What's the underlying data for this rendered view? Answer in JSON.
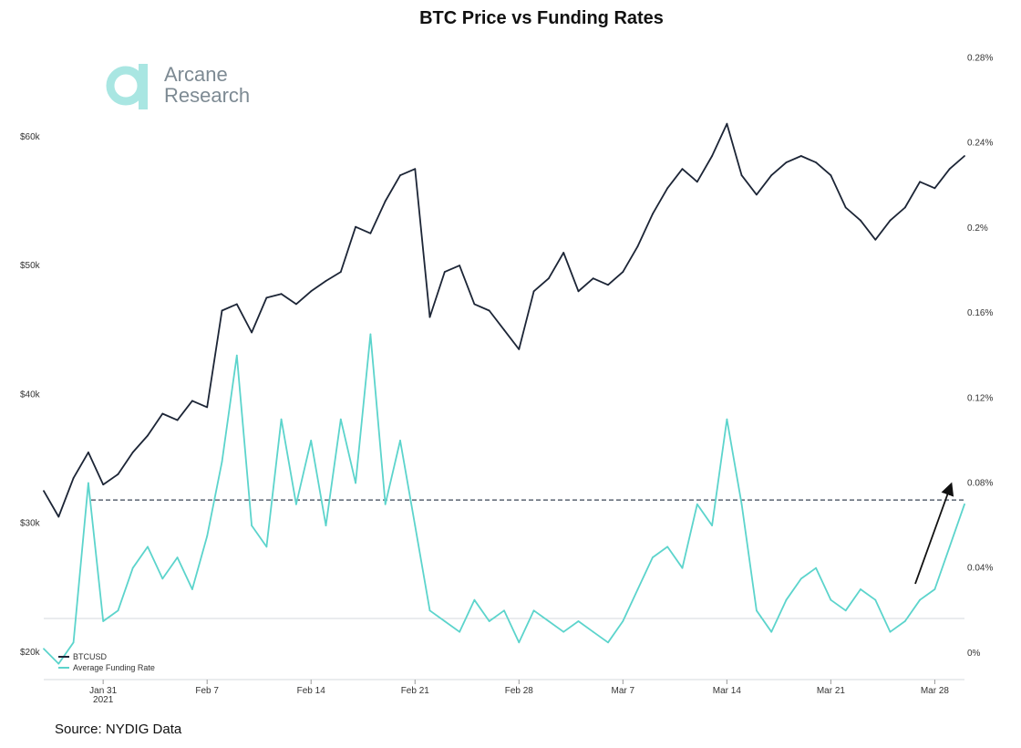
{
  "chart_data": {
    "type": "line",
    "title": "BTC Price vs Funding Rates",
    "source": "Source: NYDIG Data",
    "logo": {
      "line1": "Arcane",
      "line2": "Research"
    },
    "x_ticks": [
      "Jan 31",
      "Feb 7",
      "Feb 14",
      "Feb 21",
      "Feb 28",
      "Mar 7",
      "Mar 14",
      "Mar 21",
      "Mar 28"
    ],
    "x_tick_subtitle": "2021",
    "x_range": [
      "2021-01-27",
      "2021-03-30"
    ],
    "y_left": {
      "ticks": [
        "$20k",
        "$30k",
        "$40k",
        "$50k",
        "$60k"
      ],
      "values": [
        20000,
        30000,
        40000,
        50000,
        60000
      ],
      "range": [
        18000,
        67000
      ]
    },
    "y_right": {
      "ticks": [
        "0%",
        "0.04%",
        "0.08%",
        "0.12%",
        "0.16%",
        "0.2%",
        "0.24%",
        "0.28%"
      ],
      "values": [
        0,
        0.04,
        0.08,
        0.12,
        0.16,
        0.2,
        0.24,
        0.28
      ],
      "range": [
        -0.0116,
        0.2853
      ]
    },
    "reference_line": {
      "axis": "right",
      "value": 0.072,
      "style": "dashed"
    },
    "annotation": "arrow pointing up toward the latest funding rate",
    "series": [
      {
        "name": "BTCUSD",
        "axis": "left",
        "color": "#1c2536",
        "x": [
          "2021-01-27",
          "2021-01-28",
          "2021-01-29",
          "2021-01-30",
          "2021-01-31",
          "2021-02-01",
          "2021-02-02",
          "2021-02-03",
          "2021-02-04",
          "2021-02-05",
          "2021-02-06",
          "2021-02-07",
          "2021-02-08",
          "2021-02-09",
          "2021-02-10",
          "2021-02-11",
          "2021-02-12",
          "2021-02-13",
          "2021-02-14",
          "2021-02-15",
          "2021-02-16",
          "2021-02-17",
          "2021-02-18",
          "2021-02-19",
          "2021-02-20",
          "2021-02-21",
          "2021-02-22",
          "2021-02-23",
          "2021-02-24",
          "2021-02-25",
          "2021-02-26",
          "2021-02-27",
          "2021-02-28",
          "2021-03-01",
          "2021-03-02",
          "2021-03-03",
          "2021-03-04",
          "2021-03-05",
          "2021-03-06",
          "2021-03-07",
          "2021-03-08",
          "2021-03-09",
          "2021-03-10",
          "2021-03-11",
          "2021-03-12",
          "2021-03-13",
          "2021-03-14",
          "2021-03-15",
          "2021-03-16",
          "2021-03-17",
          "2021-03-18",
          "2021-03-19",
          "2021-03-20",
          "2021-03-21",
          "2021-03-22",
          "2021-03-23",
          "2021-03-24",
          "2021-03-25",
          "2021-03-26",
          "2021-03-27",
          "2021-03-28",
          "2021-03-29",
          "2021-03-30"
        ],
        "values": [
          32500,
          30500,
          33500,
          35500,
          33000,
          33800,
          35500,
          36800,
          38500,
          38000,
          39500,
          39000,
          46500,
          47000,
          44800,
          47500,
          47800,
          47000,
          48000,
          48800,
          49500,
          53000,
          52500,
          55000,
          57000,
          57500,
          46000,
          49500,
          50000,
          47000,
          46500,
          45000,
          43500,
          48000,
          49000,
          51000,
          48000,
          49000,
          48500,
          49500,
          51500,
          54000,
          56000,
          57500,
          56500,
          58500,
          61000,
          57000,
          55500,
          57000,
          58000,
          58500,
          58000,
          57000,
          54500,
          53500,
          52000,
          53500,
          54500,
          56500,
          56000,
          57500,
          58500
        ]
      },
      {
        "name": "Average Funding Rate",
        "axis": "right",
        "color": "#5cd4cc",
        "x": [
          "2021-01-27",
          "2021-01-28",
          "2021-01-29",
          "2021-01-30",
          "2021-01-31",
          "2021-02-01",
          "2021-02-02",
          "2021-02-03",
          "2021-02-04",
          "2021-02-05",
          "2021-02-06",
          "2021-02-07",
          "2021-02-08",
          "2021-02-09",
          "2021-02-10",
          "2021-02-11",
          "2021-02-12",
          "2021-02-13",
          "2021-02-14",
          "2021-02-15",
          "2021-02-16",
          "2021-02-17",
          "2021-02-18",
          "2021-02-19",
          "2021-02-20",
          "2021-02-21",
          "2021-02-22",
          "2021-02-23",
          "2021-02-24",
          "2021-02-25",
          "2021-02-26",
          "2021-02-27",
          "2021-02-28",
          "2021-03-01",
          "2021-03-02",
          "2021-03-03",
          "2021-03-04",
          "2021-03-05",
          "2021-03-06",
          "2021-03-07",
          "2021-03-08",
          "2021-03-09",
          "2021-03-10",
          "2021-03-11",
          "2021-03-12",
          "2021-03-13",
          "2021-03-14",
          "2021-03-15",
          "2021-03-16",
          "2021-03-17",
          "2021-03-18",
          "2021-03-19",
          "2021-03-20",
          "2021-03-21",
          "2021-03-22",
          "2021-03-23",
          "2021-03-24",
          "2021-03-25",
          "2021-03-26",
          "2021-03-27",
          "2021-03-28",
          "2021-03-29",
          "2021-03-30"
        ],
        "values": [
          0.002,
          -0.005,
          0.005,
          0.08,
          0.015,
          0.02,
          0.04,
          0.05,
          0.035,
          0.045,
          0.03,
          0.055,
          0.09,
          0.14,
          0.06,
          0.05,
          0.11,
          0.07,
          0.1,
          0.06,
          0.11,
          0.08,
          0.15,
          0.07,
          0.1,
          0.06,
          0.02,
          0.015,
          0.01,
          0.025,
          0.015,
          0.02,
          0.005,
          0.02,
          0.015,
          0.01,
          0.015,
          0.01,
          0.005,
          0.015,
          0.03,
          0.045,
          0.05,
          0.04,
          0.07,
          0.06,
          0.11,
          0.07,
          0.02,
          0.01,
          0.025,
          0.035,
          0.04,
          0.025,
          0.02,
          0.03,
          0.025,
          0.01,
          0.015,
          0.025,
          0.03,
          0.05,
          0.07
        ]
      }
    ],
    "legend": {
      "position": "bottom-left",
      "entries": [
        "BTCUSD",
        "Average Funding Rate"
      ]
    },
    "grid": false
  },
  "colors": {
    "btc": "#1c2536",
    "funding": "#5cd4cc",
    "zero_line": "#d6d9dc",
    "ref_line": "#3a4556",
    "logo": "#a9e6e2"
  }
}
